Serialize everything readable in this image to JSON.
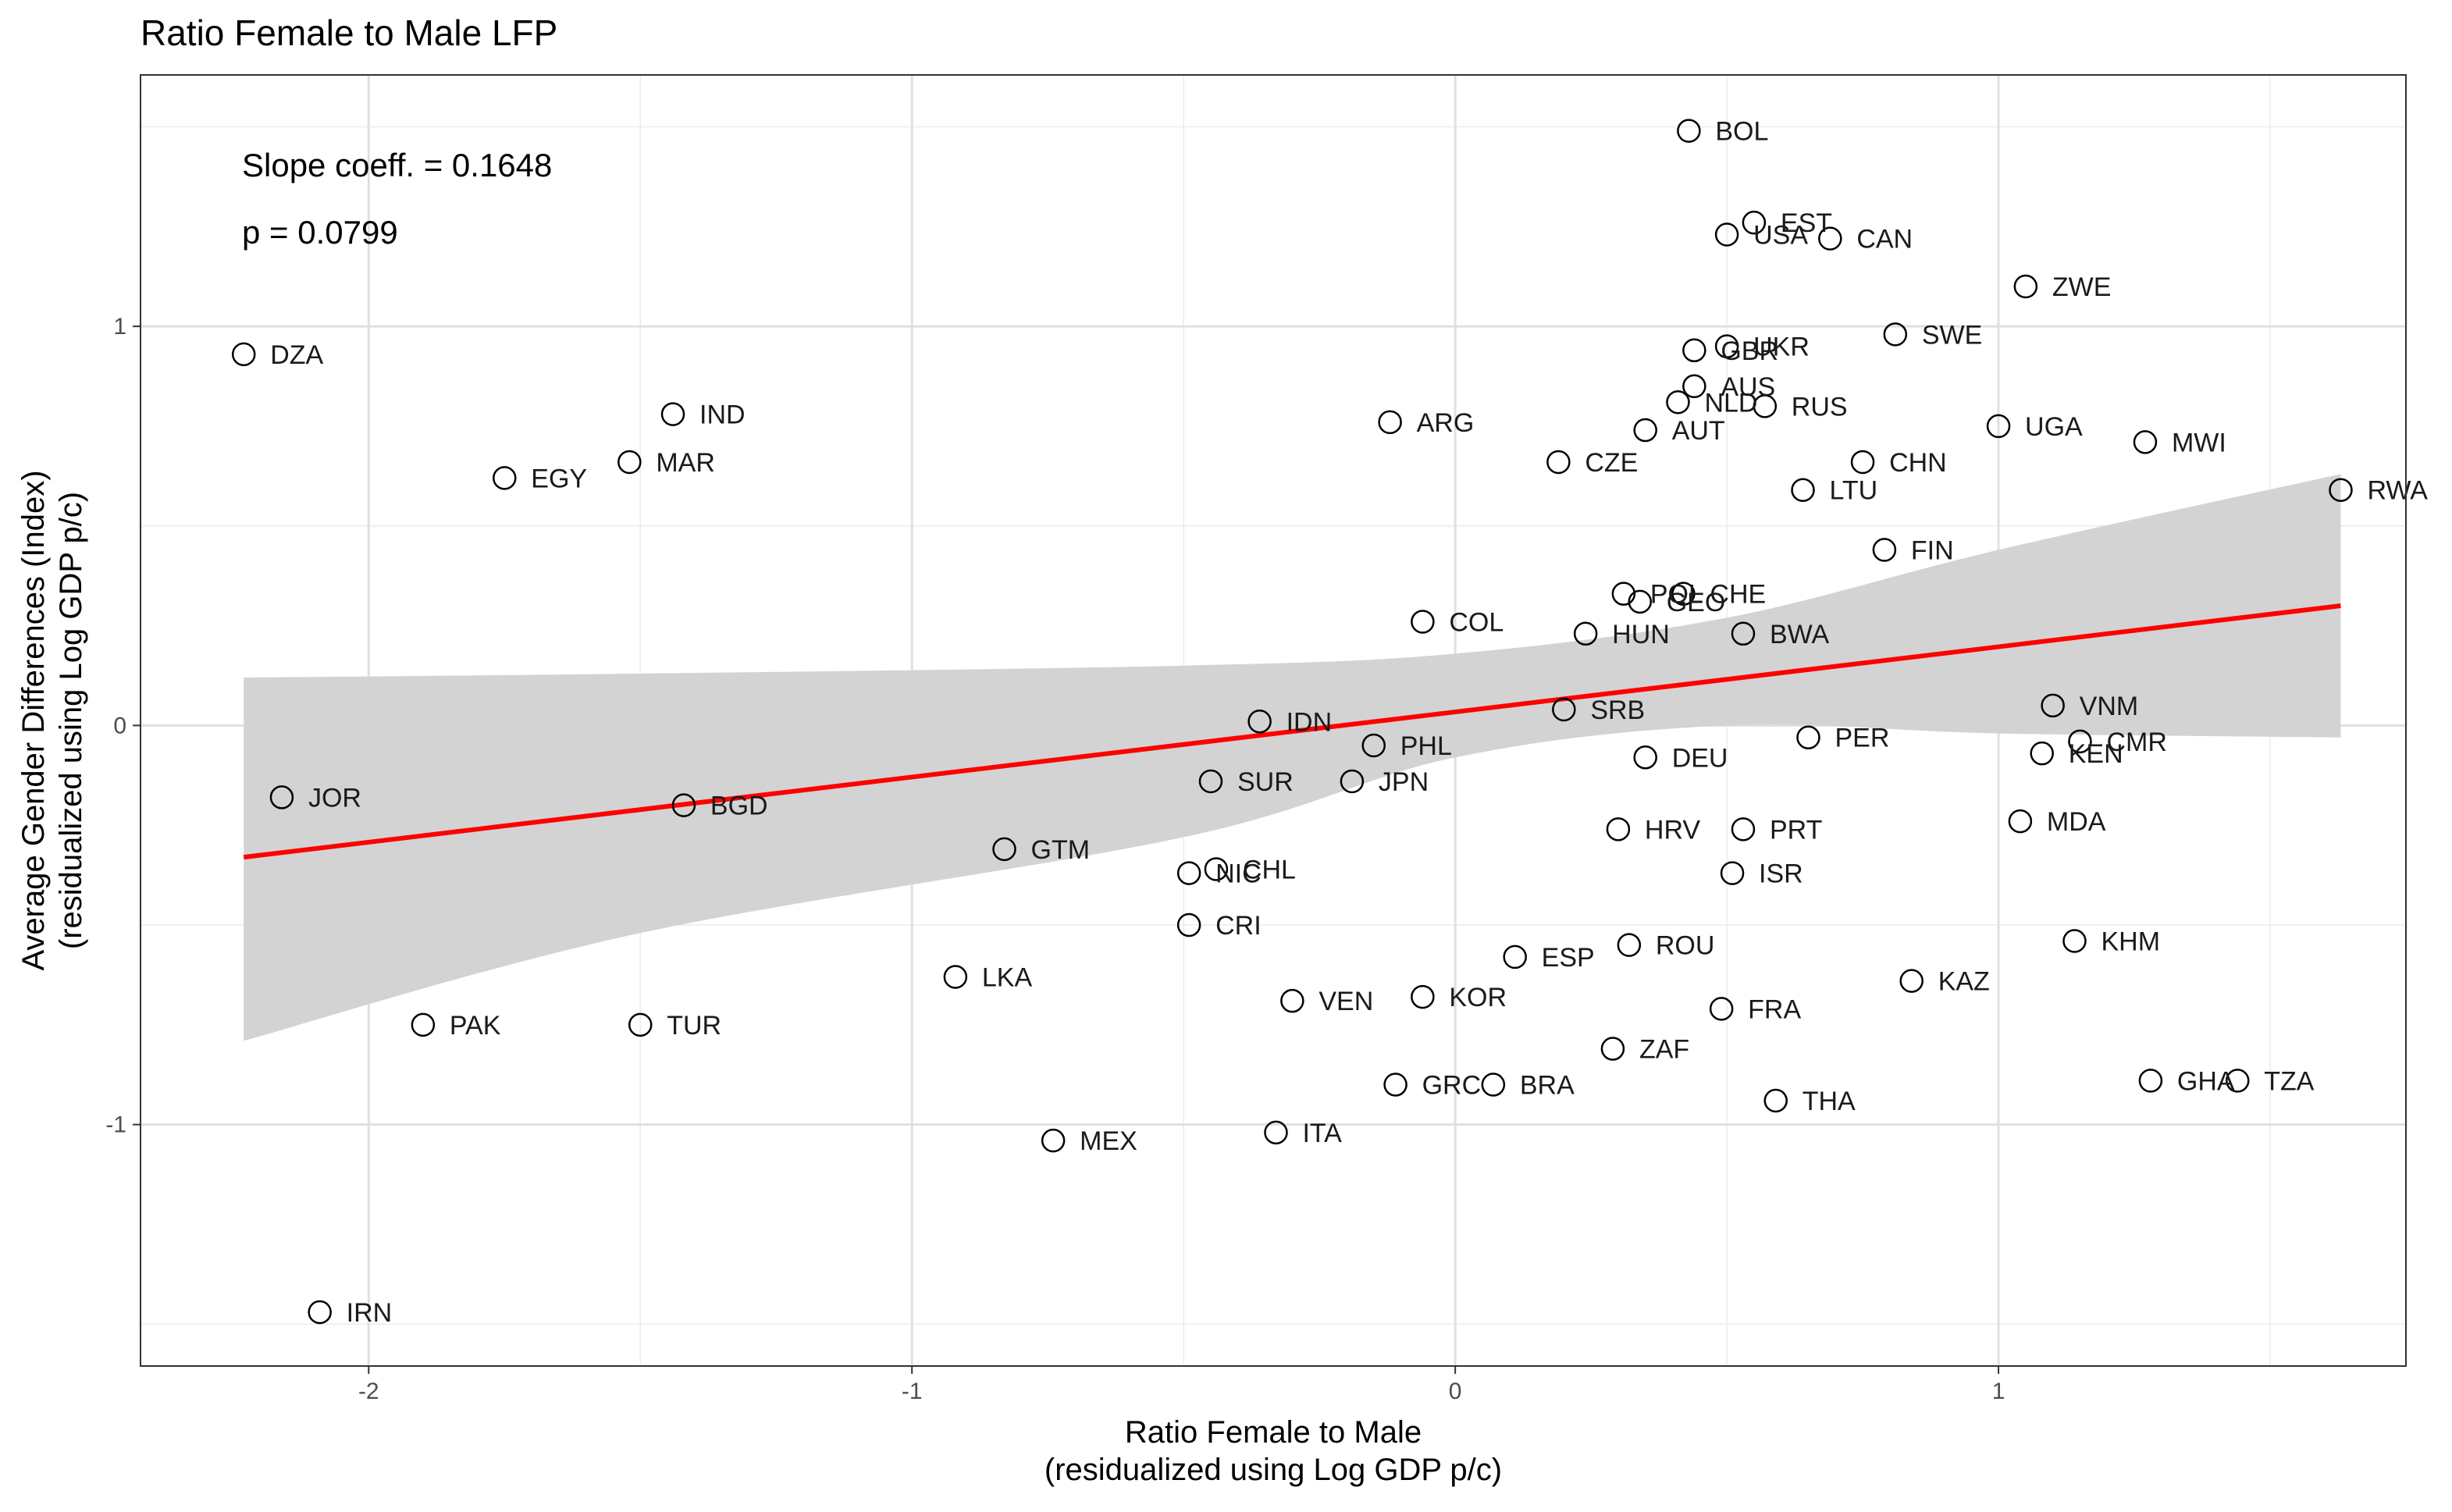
{
  "chart_data": {
    "type": "scatter",
    "title": "Ratio Female to Male LFP",
    "xlabel": [
      "Ratio Female to Male",
      "(residualized using Log GDP p/c)"
    ],
    "ylabel": [
      "Average Gender Differences (Index)",
      "(residualized using Log GDP p/c)"
    ],
    "xlim": [
      -2.42,
      1.75
    ],
    "ylim": [
      -1.605,
      1.63
    ],
    "x_ticks": [
      -2,
      -1,
      0,
      1
    ],
    "x_tick_labels": [
      "-2",
      "-1",
      "0",
      "1"
    ],
    "y_ticks": [
      -1,
      0,
      1
    ],
    "y_tick_labels": [
      "-1",
      "0",
      "1"
    ],
    "grid": true,
    "annotations": [
      "Slope coeff. = 0.1648",
      "p = 0.0799"
    ],
    "regression": {
      "slope": 0.1648,
      "p": 0.0799,
      "line": [
        [
          -2.23,
          -0.33
        ],
        [
          1.63,
          0.3
        ]
      ],
      "ci_upper": [
        [
          -2.23,
          0.12
        ],
        [
          -1.5,
          0.13
        ],
        [
          -0.5,
          0.15
        ],
        [
          0.0,
          0.18
        ],
        [
          0.5,
          0.27
        ],
        [
          1.0,
          0.44
        ],
        [
          1.63,
          0.63
        ]
      ],
      "ci_lower": [
        [
          -2.23,
          -0.79
        ],
        [
          -1.5,
          -0.52
        ],
        [
          -0.5,
          -0.28
        ],
        [
          0.0,
          -0.08
        ],
        [
          0.5,
          0.0
        ],
        [
          1.0,
          -0.02
        ],
        [
          1.63,
          -0.03
        ]
      ],
      "line_color": "#ff0000",
      "band_color": "#d3d3d3"
    },
    "points": [
      {
        "label": "BOL",
        "x": 0.43,
        "y": 1.49
      },
      {
        "label": "EST",
        "x": 0.55,
        "y": 1.26
      },
      {
        "label": "USA",
        "x": 0.5,
        "y": 1.23
      },
      {
        "label": "CAN",
        "x": 0.69,
        "y": 1.22
      },
      {
        "label": "ZWE",
        "x": 1.05,
        "y": 1.1
      },
      {
        "label": "SWE",
        "x": 0.81,
        "y": 0.98
      },
      {
        "label": "GBR",
        "x": 0.44,
        "y": 0.94
      },
      {
        "label": "UKR",
        "x": 0.5,
        "y": 0.95
      },
      {
        "label": "DZA",
        "x": -2.23,
        "y": 0.93
      },
      {
        "label": "AUS",
        "x": 0.44,
        "y": 0.85
      },
      {
        "label": "NLD",
        "x": 0.41,
        "y": 0.81
      },
      {
        "label": "RUS",
        "x": 0.57,
        "y": 0.8
      },
      {
        "label": "IND",
        "x": -1.44,
        "y": 0.78
      },
      {
        "label": "ARG",
        "x": -0.12,
        "y": 0.76
      },
      {
        "label": "UGA",
        "x": 1.0,
        "y": 0.75
      },
      {
        "label": "AUT",
        "x": 0.35,
        "y": 0.74
      },
      {
        "label": "MWI",
        "x": 1.27,
        "y": 0.71
      },
      {
        "label": "MAR",
        "x": -1.52,
        "y": 0.66
      },
      {
        "label": "CZE",
        "x": 0.19,
        "y": 0.66
      },
      {
        "label": "CHN",
        "x": 0.75,
        "y": 0.66
      },
      {
        "label": "EGY",
        "x": -1.75,
        "y": 0.62
      },
      {
        "label": "LTU",
        "x": 0.64,
        "y": 0.59
      },
      {
        "label": "RWA",
        "x": 1.63,
        "y": 0.59
      },
      {
        "label": "FIN",
        "x": 0.79,
        "y": 0.44
      },
      {
        "label": "POL",
        "x": 0.31,
        "y": 0.33
      },
      {
        "label": "CHE",
        "x": 0.42,
        "y": 0.33
      },
      {
        "label": "GEO",
        "x": 0.34,
        "y": 0.31
      },
      {
        "label": "COL",
        "x": -0.06,
        "y": 0.26
      },
      {
        "label": "HUN",
        "x": 0.24,
        "y": 0.23
      },
      {
        "label": "BWA",
        "x": 0.53,
        "y": 0.23
      },
      {
        "label": "SRB",
        "x": 0.2,
        "y": 0.04
      },
      {
        "label": "VNM",
        "x": 1.1,
        "y": 0.05
      },
      {
        "label": "IDN",
        "x": -0.36,
        "y": 0.01
      },
      {
        "label": "PER",
        "x": 0.65,
        "y": -0.03
      },
      {
        "label": "CMR",
        "x": 1.15,
        "y": -0.04
      },
      {
        "label": "PHL",
        "x": -0.15,
        "y": -0.05
      },
      {
        "label": "KEN",
        "x": 1.08,
        "y": -0.07
      },
      {
        "label": "DEU",
        "x": 0.35,
        "y": -0.08
      },
      {
        "label": "SUR",
        "x": -0.45,
        "y": -0.14
      },
      {
        "label": "JPN",
        "x": -0.19,
        "y": -0.14
      },
      {
        "label": "JOR",
        "x": -2.16,
        "y": -0.18
      },
      {
        "label": "BGD",
        "x": -1.42,
        "y": -0.2
      },
      {
        "label": "MDA",
        "x": 1.04,
        "y": -0.24
      },
      {
        "label": "HRV",
        "x": 0.3,
        "y": -0.26
      },
      {
        "label": "PRT",
        "x": 0.53,
        "y": -0.26
      },
      {
        "label": "GTM",
        "x": -0.83,
        "y": -0.31
      },
      {
        "label": "CHL",
        "x": -0.44,
        "y": -0.36
      },
      {
        "label": "NIC",
        "x": -0.49,
        "y": -0.37
      },
      {
        "label": "ISR",
        "x": 0.51,
        "y": -0.37
      },
      {
        "label": "CRI",
        "x": -0.49,
        "y": -0.5
      },
      {
        "label": "ROU",
        "x": 0.32,
        "y": -0.55
      },
      {
        "label": "KHM",
        "x": 1.14,
        "y": -0.54
      },
      {
        "label": "ESP",
        "x": 0.11,
        "y": -0.58
      },
      {
        "label": "LKA",
        "x": -0.92,
        "y": -0.63
      },
      {
        "label": "KAZ",
        "x": 0.84,
        "y": -0.64
      },
      {
        "label": "VEN",
        "x": -0.3,
        "y": -0.69
      },
      {
        "label": "KOR",
        "x": -0.06,
        "y": -0.68
      },
      {
        "label": "FRA",
        "x": 0.49,
        "y": -0.71
      },
      {
        "label": "PAK",
        "x": -1.9,
        "y": -0.75
      },
      {
        "label": "TUR",
        "x": -1.5,
        "y": -0.75
      },
      {
        "label": "ZAF",
        "x": 0.29,
        "y": -0.81
      },
      {
        "label": "GHA",
        "x": 1.28,
        "y": -0.89
      },
      {
        "label": "TZA",
        "x": 1.44,
        "y": -0.89
      },
      {
        "label": "GRC",
        "x": -0.11,
        "y": -0.9
      },
      {
        "label": "BRA",
        "x": 0.07,
        "y": -0.9
      },
      {
        "label": "THA",
        "x": 0.59,
        "y": -0.94
      },
      {
        "label": "ITA",
        "x": -0.33,
        "y": -1.02
      },
      {
        "label": "MEX",
        "x": -0.74,
        "y": -1.04
      },
      {
        "label": "IRN",
        "x": -2.09,
        "y": -1.47
      }
    ]
  }
}
